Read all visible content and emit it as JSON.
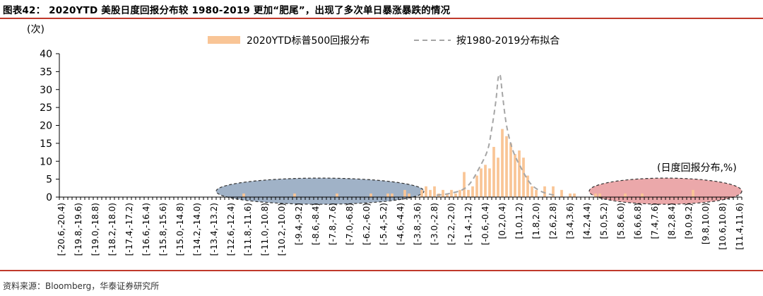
{
  "header": {
    "title": "图表42：  2020YTD 美股日度回报分布较 1980-2019 更加“肥尾”，出现了多次单日暴涨暴跌的情况"
  },
  "footer": {
    "source": "资料来源：Bloomberg，华泰证券研究所"
  },
  "colors": {
    "rule": "#c0392b",
    "bar": "#f9c596",
    "fit_line": "#a6a6a6",
    "left_tail_ellipse": "#8fa5bd",
    "right_tail_ellipse": "#e8999b"
  },
  "chart_data": {
    "type": "bar",
    "ylabel": "(次)",
    "xlabel": "(日度回报分布,%)",
    "ylim": [
      0,
      40
    ],
    "yticks": [
      0,
      5,
      10,
      15,
      20,
      25,
      30,
      35,
      40
    ],
    "grid": false,
    "legend_position": "top-center",
    "bin_width": 0.2,
    "x_start": -20.6,
    "x_end": 11.6,
    "tick_labels": [
      "[-20.6,-20.4)",
      "[-19.8,-19.6)",
      "[-19.0,-18.8)",
      "[-18.2,-18.0)",
      "[-17.4,-17.2)",
      "[-16.6,-16.4)",
      "[-15.8,-15.6)",
      "[-15.0,-14.8)",
      "[-14.2,-14.0)",
      "[-13.4,-13.2)",
      "[-12.6,-12.4)",
      "[-11.8,-11.6)",
      "[-11.0,-10.8)",
      "[-10.2,-10.0)",
      "[-9.4,-9.2)",
      "[-8.6,-8.4)",
      "[-7.8,-7.6)",
      "[-7.0,-6.8)",
      "[-6.2,-6.0)",
      "[-5.4,-5.2)",
      "[-4.6,-4.4)",
      "[-3.8,-3.6)",
      "[-3.0,-2.8)",
      "[-2.2,-2.0)",
      "[-1.4,-1.2)",
      "[-0.6,-0.4)",
      "[0.2,0.4)",
      "[1.0,1.2)",
      "[1.8,2.0)",
      "[2.6,2.8)",
      "[3.4,3.6)",
      "[4.2,4.4)",
      "[5.0,5.2)",
      "[5.8,6.0)",
      "[6.6,6.8)",
      "[7.4,7.6)",
      "[8.2,8.4)",
      "[9.0,9.2)",
      "[9.8,10.0)",
      "[10.6,10.8)",
      "[11.4,11.6)"
    ],
    "series": [
      {
        "name": "2020YTD标普500回报分布",
        "kind": "bar",
        "points": [
          {
            "x": -12.0,
            "y": 1
          },
          {
            "x": -9.6,
            "y": 1
          },
          {
            "x": -7.6,
            "y": 1
          },
          {
            "x": -6.0,
            "y": 1
          },
          {
            "x": -5.2,
            "y": 1
          },
          {
            "x": -5.0,
            "y": 1
          },
          {
            "x": -4.4,
            "y": 2
          },
          {
            "x": -4.2,
            "y": 1
          },
          {
            "x": -3.6,
            "y": 2
          },
          {
            "x": -3.4,
            "y": 3
          },
          {
            "x": -3.2,
            "y": 2
          },
          {
            "x": -3.0,
            "y": 3
          },
          {
            "x": -2.8,
            "y": 1
          },
          {
            "x": -2.6,
            "y": 2
          },
          {
            "x": -2.4,
            "y": 1
          },
          {
            "x": -2.2,
            "y": 2
          },
          {
            "x": -2.0,
            "y": 1
          },
          {
            "x": -1.8,
            "y": 2
          },
          {
            "x": -1.6,
            "y": 7
          },
          {
            "x": -1.4,
            "y": 2
          },
          {
            "x": -1.2,
            "y": 3
          },
          {
            "x": -1.0,
            "y": 6
          },
          {
            "x": -0.8,
            "y": 8
          },
          {
            "x": -0.6,
            "y": 9
          },
          {
            "x": -0.4,
            "y": 8
          },
          {
            "x": -0.2,
            "y": 14
          },
          {
            "x": 0.0,
            "y": 11
          },
          {
            "x": 0.2,
            "y": 19
          },
          {
            "x": 0.4,
            "y": 17
          },
          {
            "x": 0.6,
            "y": 15
          },
          {
            "x": 0.8,
            "y": 12
          },
          {
            "x": 1.0,
            "y": 13
          },
          {
            "x": 1.2,
            "y": 11
          },
          {
            "x": 1.4,
            "y": 6
          },
          {
            "x": 1.6,
            "y": 3
          },
          {
            "x": 1.8,
            "y": 2
          },
          {
            "x": 2.2,
            "y": 3
          },
          {
            "x": 2.6,
            "y": 3
          },
          {
            "x": 3.0,
            "y": 2
          },
          {
            "x": 3.4,
            "y": 1
          },
          {
            "x": 3.6,
            "y": 1
          },
          {
            "x": 4.6,
            "y": 1
          },
          {
            "x": 4.8,
            "y": 1
          },
          {
            "x": 6.0,
            "y": 1
          },
          {
            "x": 6.8,
            "y": 1
          },
          {
            "x": 9.2,
            "y": 2
          }
        ]
      },
      {
        "name": "按1980-2019分布拟合",
        "kind": "line",
        "points": [
          {
            "x": -2.8,
            "y": 0.5
          },
          {
            "x": -2.2,
            "y": 1
          },
          {
            "x": -1.6,
            "y": 2
          },
          {
            "x": -1.2,
            "y": 4
          },
          {
            "x": -0.8,
            "y": 8
          },
          {
            "x": -0.4,
            "y": 13
          },
          {
            "x": -0.2,
            "y": 19
          },
          {
            "x": 0.0,
            "y": 27
          },
          {
            "x": 0.1,
            "y": 33
          },
          {
            "x": 0.2,
            "y": 34
          },
          {
            "x": 0.3,
            "y": 29
          },
          {
            "x": 0.5,
            "y": 20
          },
          {
            "x": 0.8,
            "y": 13
          },
          {
            "x": 1.2,
            "y": 8
          },
          {
            "x": 1.6,
            "y": 4
          },
          {
            "x": 2.0,
            "y": 2
          },
          {
            "x": 2.4,
            "y": 1
          },
          {
            "x": 2.8,
            "y": 0.5
          }
        ]
      }
    ],
    "highlights": [
      {
        "kind": "ellipse",
        "x_range": [
          -13.2,
          -3.4
        ],
        "y_range": [
          -2,
          5.3
        ],
        "color": "#8fa5bd"
      },
      {
        "kind": "ellipse",
        "x_range": [
          4.4,
          11.6
        ],
        "y_range": [
          -2,
          5.3
        ],
        "color": "#e8999b"
      }
    ]
  }
}
